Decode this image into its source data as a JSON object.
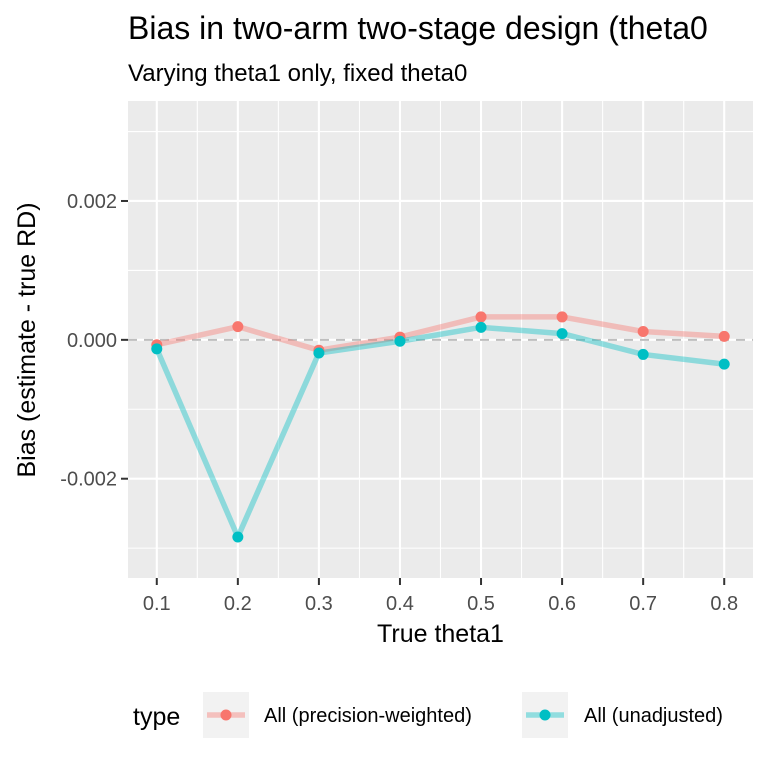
{
  "chart_data": {
    "type": "line",
    "title": "Bias in two-arm two-stage design (theta0",
    "subtitle": "Varying theta1 only, fixed theta0",
    "xlabel": "True theta1",
    "ylabel": "Bias (estimate - true RD)",
    "x": [
      0.1,
      0.2,
      0.3,
      0.4,
      0.5,
      0.6,
      0.7,
      0.8
    ],
    "x_tick_labels": [
      "0.1",
      "0.2",
      "0.3",
      "0.4",
      "0.5",
      "0.6",
      "0.7",
      "0.8"
    ],
    "xlim": [
      0.0645,
      0.8355
    ],
    "y_ticks": [
      0.002,
      0.0,
      -0.002
    ],
    "y_tick_labels": [
      "0.002",
      "0.000",
      "-0.002"
    ],
    "ylim": [
      -0.00343,
      0.00344
    ],
    "reference_line": 0,
    "grid": true,
    "legend": {
      "title": "type",
      "position": "bottom"
    },
    "series": [
      {
        "name": "All (precision-weighted)",
        "color": "#F8766D",
        "values": [
          -7e-05,
          0.00019,
          -0.00015,
          4e-05,
          0.00033,
          0.00033,
          0.00012,
          5e-05
        ]
      },
      {
        "name": "All (unadjusted)",
        "color": "#00BFC4",
        "values": [
          -0.00013,
          -0.00284,
          -0.00019,
          -2e-05,
          0.00018,
          9e-05,
          -0.00021,
          -0.00035
        ]
      }
    ]
  }
}
